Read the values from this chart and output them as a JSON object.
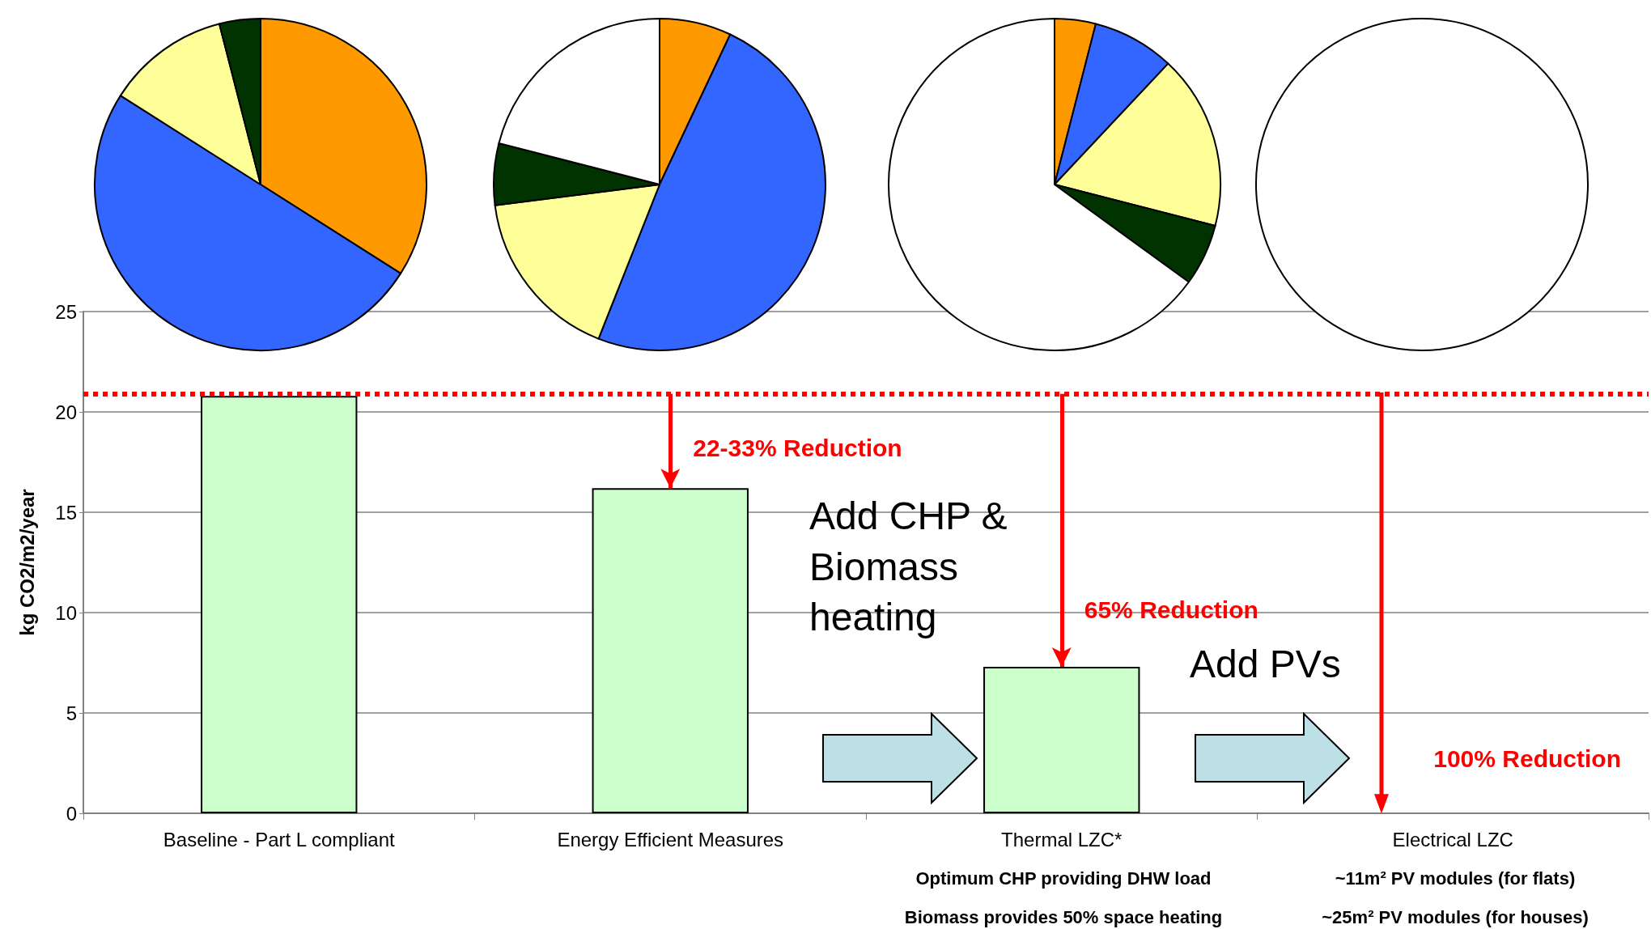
{
  "chart_data": [
    {
      "type": "bar",
      "categories": [
        "Baseline - Part L compliant",
        "Energy Efficient Measures",
        "Thermal LZC*",
        "Electrical LZC"
      ],
      "values": [
        20.8,
        16.2,
        7.3,
        0
      ],
      "color": "#ccffcc",
      "ylabel": "kg CO2/m2/year",
      "ylim": [
        0,
        25
      ],
      "yticks": [
        0,
        5,
        10,
        15,
        20,
        25
      ],
      "grid": "y",
      "ref_lines": [
        {
          "axis": "y",
          "value": 20.9,
          "color": "#ff0000",
          "line_style": "dotted"
        }
      ],
      "annotations": [
        {
          "text": "22-33% Reduction",
          "x": "Energy Efficient Measures",
          "y": 16.2
        },
        {
          "text": "65% Reduction",
          "x": "Thermal LZC*",
          "y": 7.3
        },
        {
          "text": "100% Reduction",
          "x": "Electrical LZC",
          "y": 0
        },
        "Add CHP & Biomass heating",
        "Add PVs",
        "Optimum CHP providing DHW load",
        "Biomass provides 50% space heating",
        "~11m² PV modules (for flats)",
        "~25m² PV modules (for houses)"
      ]
    },
    {
      "type": "pie",
      "categories": [
        null,
        null,
        null,
        null
      ],
      "values": [
        34,
        50,
        12,
        4
      ],
      "colors": [
        "#ff9900",
        "#3366ff",
        "#ffff99",
        "#003300"
      ]
    },
    {
      "type": "pie",
      "categories": [
        null,
        null,
        null,
        null,
        null
      ],
      "values": [
        7,
        49,
        17,
        6,
        21
      ],
      "colors": [
        "#ff9900",
        "#3366ff",
        "#ffff99",
        "#003300",
        "#ffffff"
      ]
    },
    {
      "type": "pie",
      "categories": [
        null,
        null,
        null,
        null,
        null
      ],
      "values": [
        4,
        8,
        17,
        6,
        65
      ],
      "colors": [
        "#ff9900",
        "#3366ff",
        "#ffff99",
        "#003300",
        "#ffffff"
      ]
    },
    {
      "type": "pie",
      "categories": [
        null,
        null,
        null,
        null,
        null
      ],
      "values": [
        0,
        0,
        0,
        0,
        100
      ],
      "colors": [
        "#ff9900",
        "#3366ff",
        "#ffff99",
        "#003300",
        "#ffffff"
      ]
    }
  ]
}
